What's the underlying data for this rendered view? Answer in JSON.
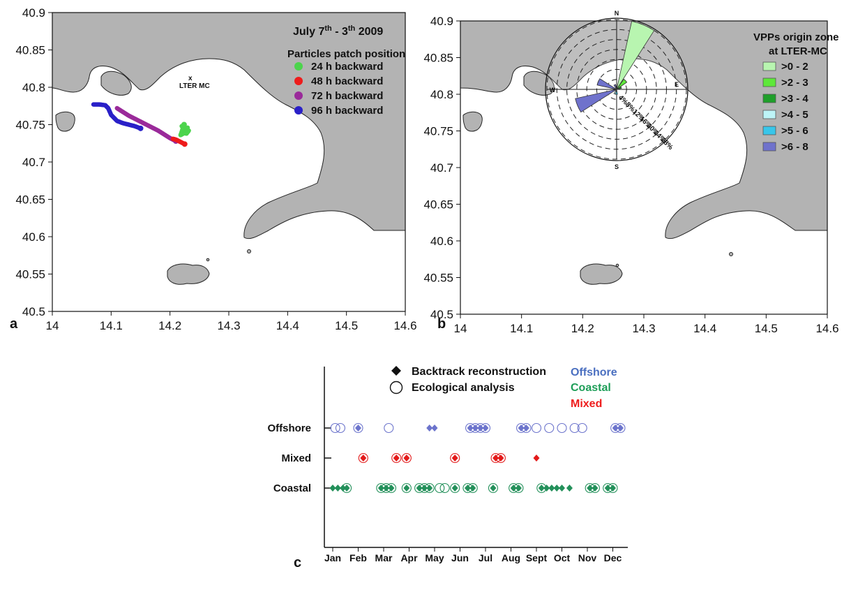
{
  "panels": {
    "a": {
      "letter": "a",
      "xticks": [
        "14",
        "14.1",
        "14.2",
        "14.3",
        "14.4",
        "14.5",
        "14.6"
      ],
      "yticks": [
        "40.9",
        "40.85",
        "40.8",
        "40.75",
        "40.7",
        "40.65",
        "40.6",
        "40.55",
        "40.5"
      ],
      "title": "July 7th - 3th 2009",
      "title_parts": {
        "a": "July 7",
        "a_sup": "th",
        "b": " - 3",
        "b_sup": "th",
        "c": " 2009"
      },
      "legend_title": "Particles patch position",
      "station_label": "LTER MC",
      "station_marker": "x",
      "legend": [
        {
          "label": "24 h backward",
          "color": "#4cd44c"
        },
        {
          "label": "48 h backward",
          "color": "#ee1c1c"
        },
        {
          "label": "72 h backward",
          "color": "#9a2a9a"
        },
        {
          "label": "96 h backward",
          "color": "#2a20c8"
        }
      ]
    },
    "b": {
      "letter": "b",
      "xticks": [
        "14",
        "14.1",
        "14.2",
        "14.3",
        "14.4",
        "14.5",
        "14.6"
      ],
      "yticks": [
        "40.9",
        "40.85",
        "40.8",
        "40.75",
        "40.7",
        "40.65",
        "40.6",
        "40.55",
        "40.5"
      ],
      "legend_title_1": "VPPs origin zone",
      "legend_title_2": "at LTER-MC",
      "legend": [
        {
          "label": ">0 - 2",
          "color": "#b8f5b0"
        },
        {
          "label": ">2 - 3",
          "color": "#5ee83a"
        },
        {
          "label": ">3 - 4",
          "color": "#1f9f2a"
        },
        {
          "label": ">4 - 5",
          "color": "#bdf4f7"
        },
        {
          "label": ">5 - 6",
          "color": "#38c6ea"
        },
        {
          "label": ">6 - 8",
          "color": "#6f72cc"
        }
      ],
      "compass": {
        "n": "N",
        "s": "S",
        "e": "E",
        "w": "W"
      },
      "rose_rings": [
        "4%",
        "8%",
        "12%",
        "16%",
        "20%",
        "24%",
        "28%"
      ]
    },
    "c": {
      "letter": "c",
      "legend": [
        {
          "label": "Backtrack reconstruction",
          "symbol": "diamond"
        },
        {
          "label": "Ecological analysis",
          "symbol": "circle"
        }
      ],
      "color_key": [
        {
          "label": "Offshore",
          "color": "#4a6fc0"
        },
        {
          "label": "Coastal",
          "color": "#1e9e58"
        },
        {
          "label": "Mixed",
          "color": "#ee1c1c"
        }
      ]
    }
  },
  "chart_data": [
    {
      "type": "scatter",
      "panel": "a",
      "xlim": [
        14,
        14.6
      ],
      "ylim": [
        40.5,
        40.9
      ],
      "series": [
        {
          "name": "24 h backward",
          "color": "#4cd44c",
          "x": [
            14.22,
            14.225,
            14.23,
            14.22,
            14.228,
            14.232,
            14.218,
            14.224
          ],
          "y": [
            40.748,
            40.744,
            40.746,
            40.74,
            40.738,
            40.742,
            40.736,
            40.75
          ]
        },
        {
          "name": "48 h backward",
          "color": "#ee1c1c",
          "x": [
            14.205,
            14.21,
            14.215,
            14.22,
            14.225
          ],
          "y": [
            40.731,
            40.73,
            40.728,
            40.726,
            40.724
          ]
        },
        {
          "name": "72 h backward",
          "color": "#9a2a9a",
          "x": [
            14.11,
            14.12,
            14.13,
            14.14,
            14.15,
            14.16,
            14.17,
            14.18,
            14.19,
            14.2,
            14.21
          ],
          "y": [
            40.772,
            40.767,
            40.762,
            40.758,
            40.754,
            40.75,
            40.746,
            40.742,
            40.737,
            40.732,
            40.728
          ]
        },
        {
          "name": "96 h backward",
          "color": "#2a20c8",
          "x": [
            14.07,
            14.08,
            14.09,
            14.095,
            14.1,
            14.11,
            14.12,
            14.13,
            14.14,
            14.15
          ],
          "y": [
            40.777,
            40.777,
            40.776,
            40.772,
            40.763,
            40.755,
            40.752,
            40.75,
            40.748,
            40.745
          ]
        }
      ]
    },
    {
      "type": "scatter",
      "panel": "c",
      "categories": [
        "Jan",
        "Feb",
        "Mar",
        "Apr",
        "May",
        "Jun",
        "Jul",
        "Aug",
        "Sept",
        "Oct",
        "Nov",
        "Dec"
      ],
      "y_categories": [
        "Offshore",
        "Mixed",
        "Coastal"
      ],
      "series": [
        {
          "name": "Offshore",
          "color": "#6c74cc",
          "points": [
            {
              "m": 0.1,
              "s": "c"
            },
            {
              "m": 0.3,
              "s": "c"
            },
            {
              "m": 1.0,
              "s": "dc"
            },
            {
              "m": 2.2,
              "s": "c"
            },
            {
              "m": 3.8,
              "s": "d"
            },
            {
              "m": 4.0,
              "s": "d"
            },
            {
              "m": 5.4,
              "s": "dc"
            },
            {
              "m": 5.6,
              "s": "dc"
            },
            {
              "m": 5.8,
              "s": "dc"
            },
            {
              "m": 6.0,
              "s": "dc"
            },
            {
              "m": 7.4,
              "s": "dc"
            },
            {
              "m": 7.6,
              "s": "dc"
            },
            {
              "m": 8.0,
              "s": "c"
            },
            {
              "m": 8.5,
              "s": "c"
            },
            {
              "m": 9.0,
              "s": "c"
            },
            {
              "m": 9.5,
              "s": "c"
            },
            {
              "m": 9.8,
              "s": "c"
            },
            {
              "m": 11.1,
              "s": "dc"
            },
            {
              "m": 11.3,
              "s": "dc"
            }
          ]
        },
        {
          "name": "Mixed",
          "color": "#e31a1a",
          "points": [
            {
              "m": 1.2,
              "s": "dc"
            },
            {
              "m": 2.5,
              "s": "dc"
            },
            {
              "m": 2.9,
              "s": "dc"
            },
            {
              "m": 4.8,
              "s": "dc"
            },
            {
              "m": 6.4,
              "s": "dc"
            },
            {
              "m": 6.6,
              "s": "dc"
            },
            {
              "m": 8.0,
              "s": "d"
            }
          ]
        },
        {
          "name": "Coastal",
          "color": "#23905a",
          "points": [
            {
              "m": 0.0,
              "s": "d"
            },
            {
              "m": 0.2,
              "s": "d"
            },
            {
              "m": 0.4,
              "s": "d"
            },
            {
              "m": 0.55,
              "s": "dc"
            },
            {
              "m": 1.9,
              "s": "dc"
            },
            {
              "m": 2.1,
              "s": "dc"
            },
            {
              "m": 2.3,
              "s": "dc"
            },
            {
              "m": 2.9,
              "s": "dc"
            },
            {
              "m": 3.4,
              "s": "dc"
            },
            {
              "m": 3.6,
              "s": "dc"
            },
            {
              "m": 3.8,
              "s": "dc"
            },
            {
              "m": 4.2,
              "s": "c"
            },
            {
              "m": 4.4,
              "s": "c"
            },
            {
              "m": 4.8,
              "s": "dc"
            },
            {
              "m": 5.3,
              "s": "dc"
            },
            {
              "m": 5.5,
              "s": "dc"
            },
            {
              "m": 6.3,
              "s": "dc"
            },
            {
              "m": 7.1,
              "s": "dc"
            },
            {
              "m": 7.3,
              "s": "dc"
            },
            {
              "m": 8.2,
              "s": "dc"
            },
            {
              "m": 8.4,
              "s": "d"
            },
            {
              "m": 8.6,
              "s": "d"
            },
            {
              "m": 8.8,
              "s": "d"
            },
            {
              "m": 9.0,
              "s": "d"
            },
            {
              "m": 9.3,
              "s": "d"
            },
            {
              "m": 10.1,
              "s": "dc"
            },
            {
              "m": 10.3,
              "s": "dc"
            },
            {
              "m": 10.8,
              "s": "dc"
            },
            {
              "m": 11.0,
              "s": "dc"
            }
          ]
        }
      ]
    },
    {
      "type": "rose",
      "panel": "b",
      "max_percent": 28,
      "petals": [
        {
          "dir": 22.5,
          "percent": 28,
          "color": "#b8f5b0"
        },
        {
          "dir": 45,
          "percent": 5,
          "color": "#5ee83a"
        },
        {
          "dir": 67.5,
          "percent": 2,
          "color": "#1f9f2a"
        },
        {
          "dir": 180,
          "percent": 2,
          "color": "#38c6ea"
        },
        {
          "dir": 202.5,
          "percent": 2,
          "color": "#bdf4f7"
        },
        {
          "dir": 247.5,
          "percent": 17,
          "color": "#6f72cc"
        },
        {
          "dir": 292.5,
          "percent": 8,
          "color": "#6f72cc"
        },
        {
          "dir": 337.5,
          "percent": 2,
          "color": "#6f72cc"
        }
      ]
    }
  ]
}
